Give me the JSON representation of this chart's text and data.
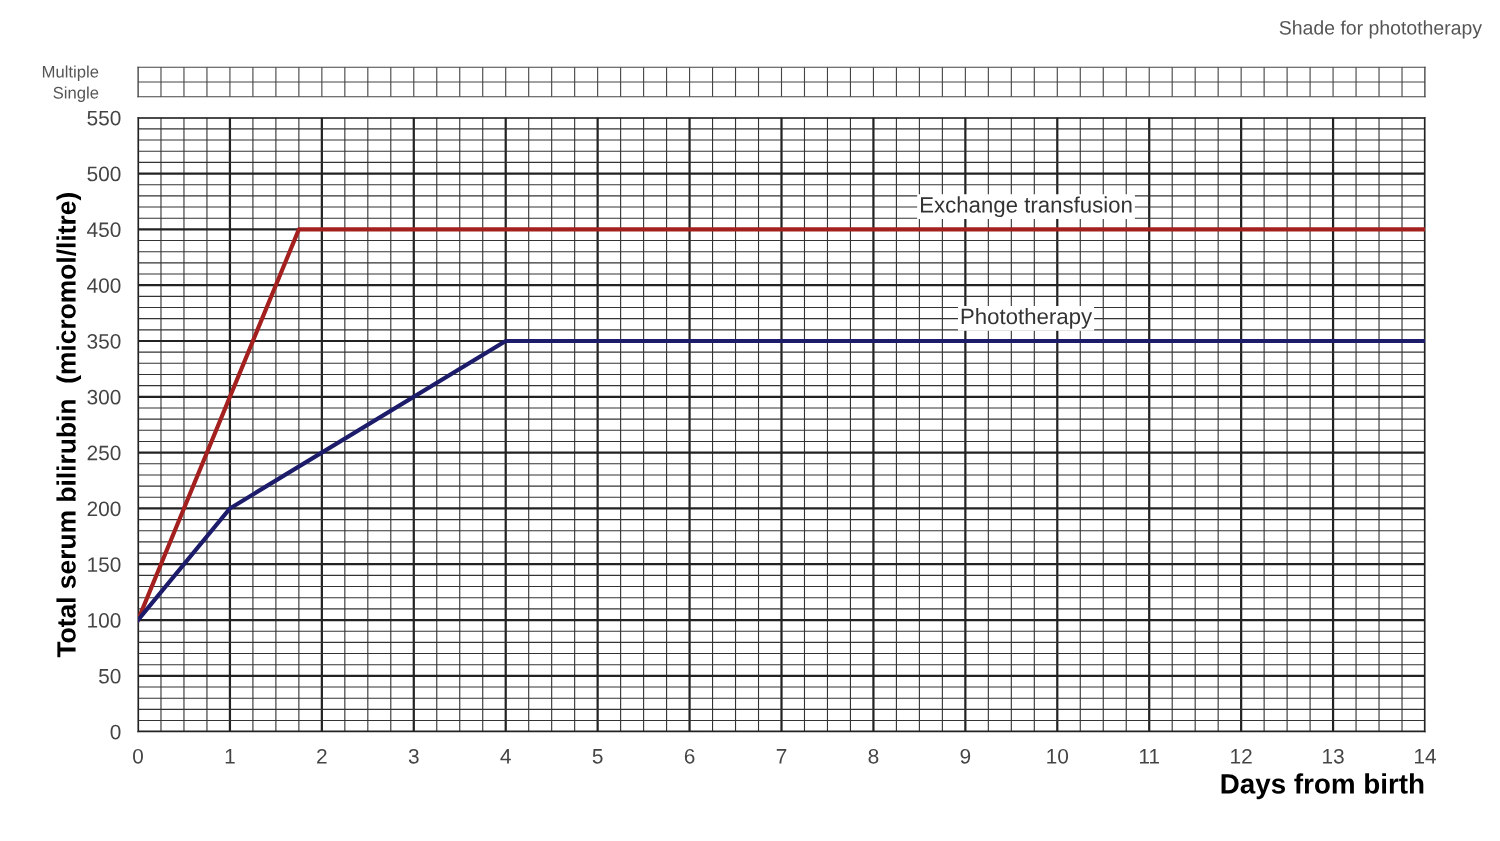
{
  "chart_data": {
    "type": "line",
    "xlabel": "Days from birth",
    "ylabel": "Total serum bilirubin  (micromol/litre)",
    "series": [
      {
        "name": "Exchange transfusion",
        "color": "#a3201f",
        "x": [
          0,
          1.75,
          14
        ],
        "values": [
          100,
          450,
          450
        ]
      },
      {
        "name": "Phototherapy",
        "color": "#1c1c6b",
        "x": [
          0,
          1,
          4,
          14
        ],
        "values": [
          100,
          200,
          350,
          350
        ]
      }
    ],
    "xlim": [
      0,
      14
    ],
    "xticks": [
      0,
      1,
      2,
      3,
      4,
      5,
      6,
      7,
      8,
      9,
      10,
      11,
      12,
      13,
      14
    ],
    "ylim": [
      0,
      550
    ],
    "yticks": [
      0,
      50,
      100,
      150,
      200,
      250,
      300,
      350,
      400,
      450,
      500,
      550
    ],
    "grid": true,
    "legend": false,
    "marker": "none",
    "line_style": "solid",
    "annotations": [
      "Shade for phototherapy",
      "Multiple",
      "Single"
    ]
  }
}
